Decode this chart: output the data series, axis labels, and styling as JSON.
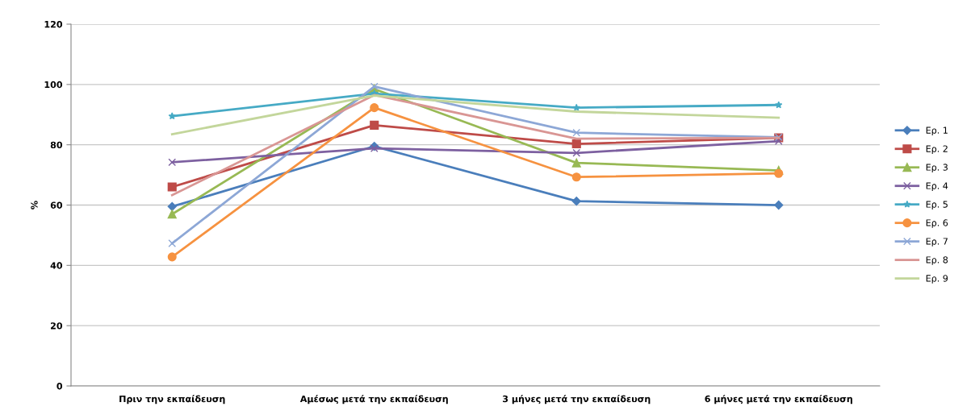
{
  "chart_data": {
    "type": "line",
    "ylabel": "%",
    "categories": [
      "Πριν την εκπαίδευση",
      "Αμέσως μετά την εκπαίδευση",
      "3 μήνες μετά την εκπαίδευση",
      "6 μήνες μετά την εκπαίδευση"
    ],
    "ylim": [
      0,
      120
    ],
    "yticks": [
      0,
      20,
      40,
      60,
      80,
      100,
      120
    ],
    "grid": "y",
    "legend": "right",
    "series": [
      {
        "name": "Ερ. 1",
        "color": "#4a7ebb",
        "marker": "diamond",
        "values": [
          59.5,
          79.5,
          61.3,
          60
        ]
      },
      {
        "name": "Ερ. 2",
        "color": "#be4b48",
        "marker": "square",
        "values": [
          66,
          86.5,
          80.3,
          82.3
        ]
      },
      {
        "name": "Ερ. 3",
        "color": "#98b954",
        "marker": "triangle",
        "values": [
          57,
          98.5,
          74,
          71.5
        ]
      },
      {
        "name": "Ερ. 4",
        "color": "#7d60a0",
        "marker": "cross",
        "values": [
          74.2,
          78.8,
          77.3,
          81.2
        ]
      },
      {
        "name": "Ερ. 5",
        "color": "#46aac5",
        "marker": "star",
        "values": [
          89.5,
          97,
          92.3,
          93.2
        ]
      },
      {
        "name": "Ερ. 6",
        "color": "#f69240",
        "marker": "circle",
        "values": [
          42.8,
          92.3,
          69.3,
          70.5
        ]
      },
      {
        "name": "Ερ. 7",
        "color": "#8da7d6",
        "marker": "cross",
        "values": [
          47.3,
          99.3,
          84,
          82.5
        ]
      },
      {
        "name": "Ερ. 8",
        "color": "#d99694",
        "marker": "none",
        "values": [
          63.3,
          96.5,
          82,
          82.3
        ]
      },
      {
        "name": "Ερ. 9",
        "color": "#c3d69b",
        "marker": "none",
        "values": [
          83.5,
          96.3,
          91,
          89
        ]
      }
    ]
  }
}
